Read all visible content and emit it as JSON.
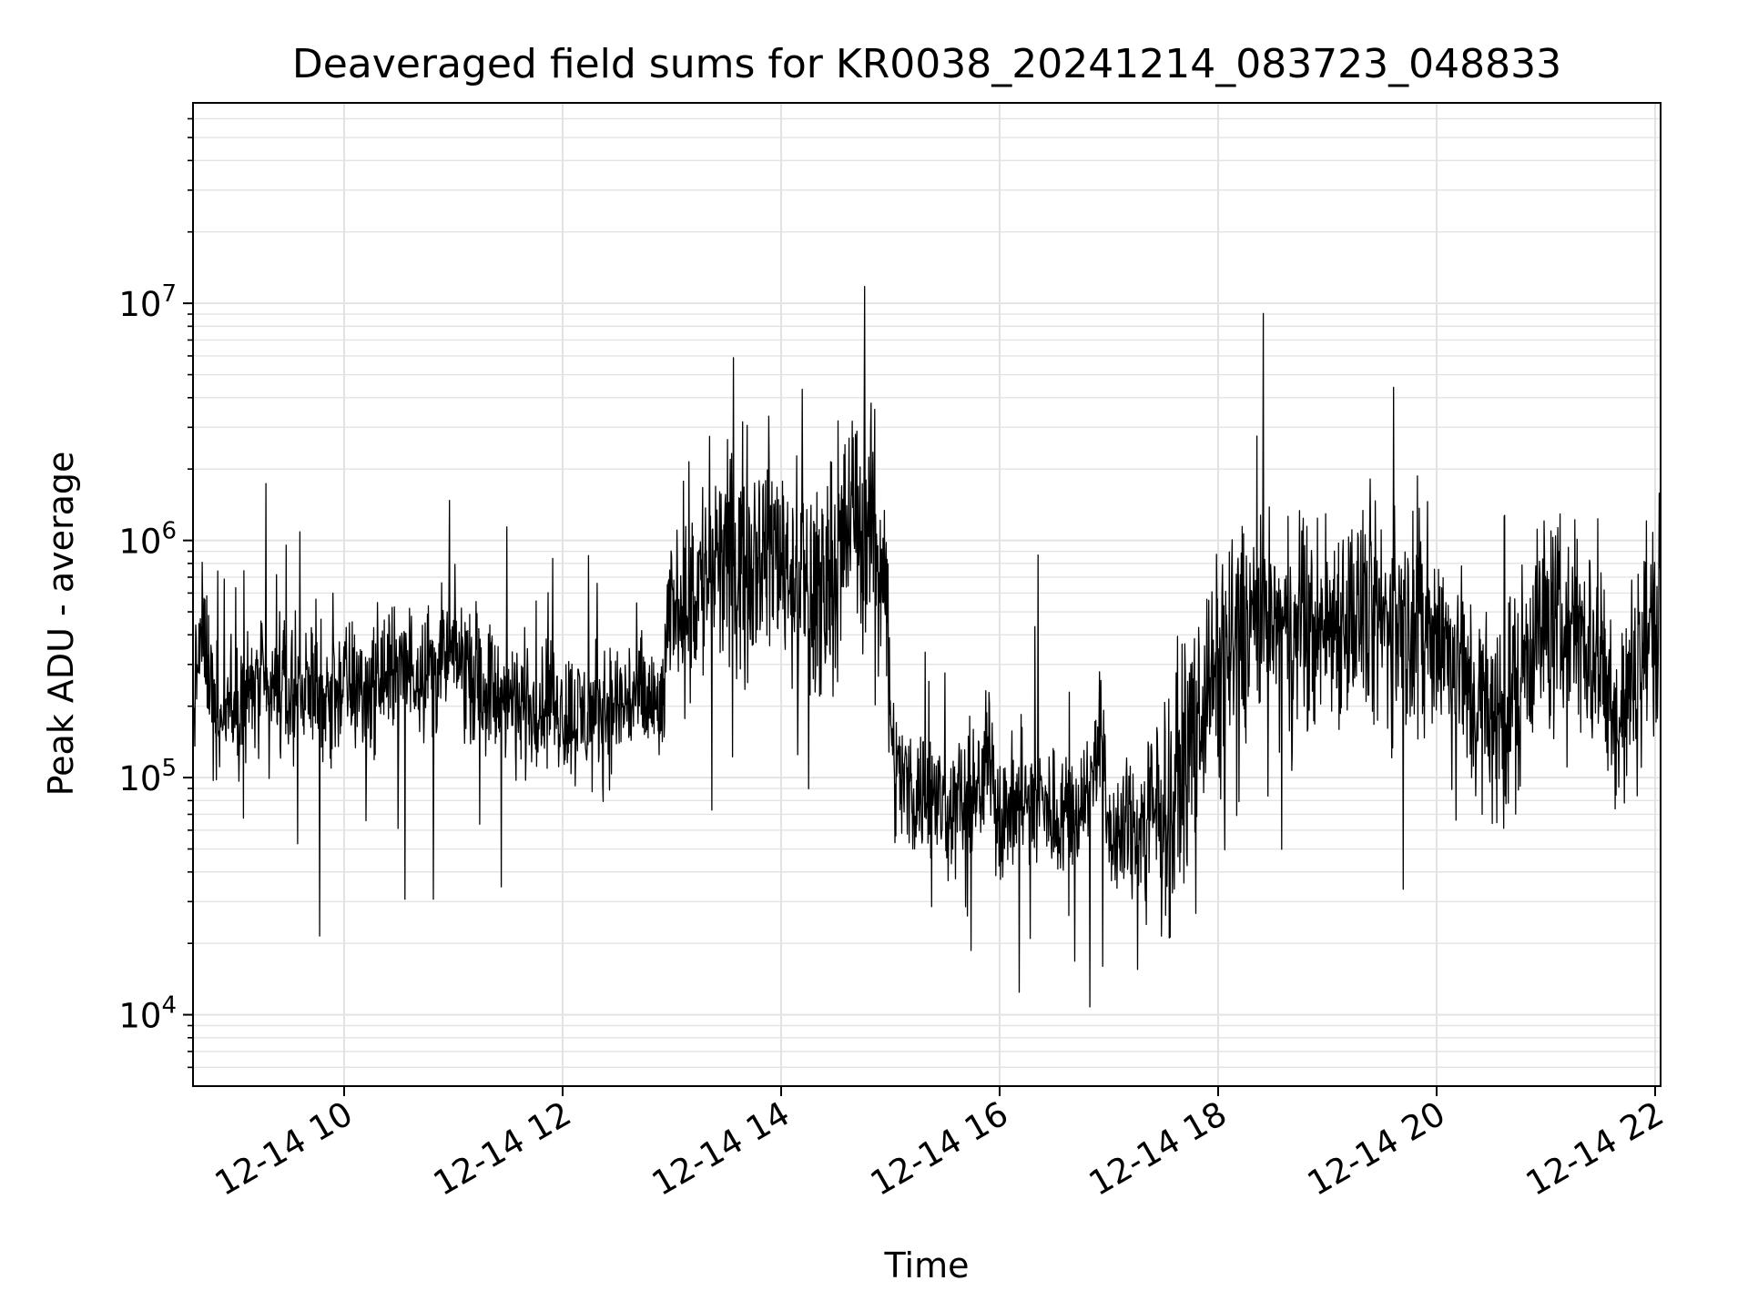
{
  "chart_data": {
    "type": "line",
    "title": "Deaveraged field sums for KR0038_20241214_083723_048833",
    "xlabel": "Time",
    "ylabel": "Peak ADU - average",
    "x_axis": {
      "kind": "datetime",
      "range": [
        "2024-12-14T08:37",
        "2024-12-14T22:03"
      ],
      "ticks": [
        {
          "value": "2024-12-14T10:00",
          "label": "12-14 10"
        },
        {
          "value": "2024-12-14T12:00",
          "label": "12-14 12"
        },
        {
          "value": "2024-12-14T14:00",
          "label": "12-14 14"
        },
        {
          "value": "2024-12-14T16:00",
          "label": "12-14 16"
        },
        {
          "value": "2024-12-14T18:00",
          "label": "12-14 18"
        },
        {
          "value": "2024-12-14T20:00",
          "label": "12-14 20"
        },
        {
          "value": "2024-12-14T22:00",
          "label": "12-14 22"
        }
      ]
    },
    "y_axis": {
      "scale": "log",
      "range": [
        5000,
        70000000
      ],
      "ticks": [
        {
          "value": 10000,
          "base": "10",
          "exp": "4"
        },
        {
          "value": 100000,
          "base": "10",
          "exp": "5"
        },
        {
          "value": 1000000,
          "base": "10",
          "exp": "6"
        },
        {
          "value": 10000000,
          "base": "10",
          "exp": "7"
        }
      ]
    },
    "grid": true,
    "line_color": "#000000",
    "grid_color": "#e3e3e3",
    "series": [
      {
        "x": [
          "08:37",
          "08:42",
          "08:47",
          "08:52",
          "08:57",
          "09:02",
          "09:10",
          "09:20",
          "09:30",
          "09:40",
          "09:50",
          "10:00",
          "10:10",
          "10:20",
          "10:30",
          "10:40",
          "10:50",
          "11:00",
          "11:10",
          "11:20",
          "11:30",
          "11:40",
          "11:50",
          "12:00",
          "12:10",
          "12:20",
          "12:30",
          "12:40",
          "12:50",
          "12:54",
          "13:00",
          "13:10",
          "13:20",
          "13:30",
          "13:40",
          "13:50",
          "14:00",
          "14:10",
          "14:20",
          "14:30",
          "14:40",
          "14:50",
          "14:56",
          "15:02",
          "15:10",
          "15:20",
          "15:30",
          "15:40",
          "15:50",
          "15:55",
          "16:00",
          "16:10",
          "16:20",
          "16:30",
          "16:40",
          "16:50",
          "16:55",
          "17:00",
          "17:10",
          "17:20",
          "17:30",
          "17:40",
          "17:50",
          "18:00",
          "18:10",
          "18:20",
          "18:30",
          "18:40",
          "18:50",
          "19:00",
          "19:10",
          "19:20",
          "19:30",
          "19:40",
          "19:50",
          "20:00",
          "20:10",
          "20:20",
          "20:30",
          "20:40",
          "20:50",
          "21:00",
          "21:10",
          "21:20",
          "21:30",
          "21:40",
          "21:50",
          "21:55",
          "22:00",
          "22:03"
        ],
        "y": [
          200000,
          420000,
          250000,
          160000,
          220000,
          210000,
          240000,
          220000,
          230000,
          240000,
          220000,
          250000,
          230000,
          260000,
          270000,
          300000,
          290000,
          330000,
          280000,
          230000,
          210000,
          200000,
          210000,
          190000,
          180000,
          190000,
          200000,
          220000,
          200000,
          180000,
          550000,
          600000,
          700000,
          800000,
          900000,
          950000,
          900000,
          650000,
          550000,
          900000,
          1300000,
          1100000,
          1000000,
          110000,
          90000,
          85000,
          75000,
          80000,
          85000,
          150000,
          70000,
          75000,
          80000,
          70000,
          75000,
          90000,
          170000,
          60000,
          55000,
          65000,
          70000,
          110000,
          200000,
          280000,
          400000,
          480000,
          420000,
          380000,
          400000,
          450000,
          500000,
          480000,
          460000,
          440000,
          420000,
          400000,
          320000,
          220000,
          170000,
          200000,
          380000,
          450000,
          420000,
          400000,
          300000,
          160000,
          280000,
          400000,
          480000,
          500000
        ]
      }
    ]
  }
}
